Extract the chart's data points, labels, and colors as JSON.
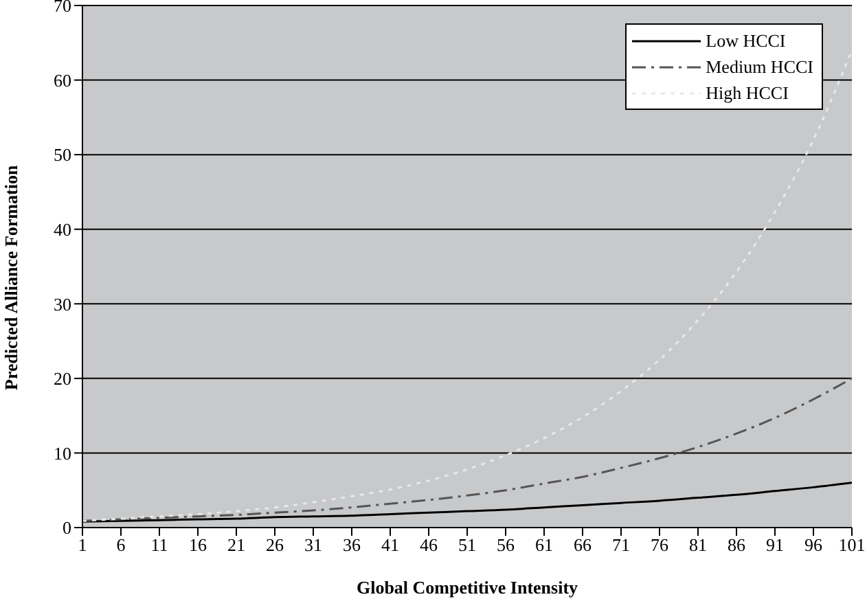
{
  "chart_data": {
    "type": "line",
    "xlabel": "Global Competitive Intensity",
    "ylabel": "Predicted Alliance Formation",
    "x": [
      1,
      6,
      11,
      16,
      21,
      26,
      31,
      36,
      41,
      46,
      51,
      56,
      61,
      66,
      71,
      76,
      81,
      86,
      91,
      96,
      101
    ],
    "xlim": [
      1,
      101
    ],
    "xticks": [
      1,
      6,
      11,
      16,
      21,
      26,
      31,
      36,
      41,
      46,
      51,
      56,
      61,
      66,
      71,
      76,
      81,
      86,
      91,
      96,
      101
    ],
    "ylim": [
      0,
      70
    ],
    "yticks": [
      0,
      10,
      20,
      30,
      40,
      50,
      60,
      70
    ],
    "grid": "y",
    "legend": "top right",
    "marker": "none",
    "series": [
      {
        "name": "Low HCCI",
        "color": "#000000",
        "line_style": "solid",
        "values": [
          0.8,
          0.9,
          1.0,
          1.1,
          1.2,
          1.4,
          1.5,
          1.6,
          1.8,
          2.0,
          2.2,
          2.4,
          2.7,
          3.0,
          3.3,
          3.6,
          4.0,
          4.4,
          4.9,
          5.4,
          6
        ]
      },
      {
        "name": "Medium HCCI",
        "color": "#555555",
        "line_style": "dashdot",
        "values": [
          0.9,
          1.1,
          1.3,
          1.5,
          1.7,
          2.0,
          2.3,
          2.7,
          3.2,
          3.7,
          4.3,
          5.0,
          5.9,
          6.8,
          8.0,
          9.3,
          10.8,
          12.6,
          14.7,
          17.2,
          20
        ]
      },
      {
        "name": "High HCCI",
        "color": "#e8e8e8",
        "line_style": "dotted",
        "values": [
          0.9,
          1.2,
          1.5,
          1.8,
          2.2,
          2.7,
          3.4,
          4.2,
          5.1,
          6.3,
          7.8,
          9.7,
          12,
          14.8,
          18.3,
          22.5,
          27.8,
          34.3,
          42.3,
          52,
          64
        ]
      }
    ]
  }
}
